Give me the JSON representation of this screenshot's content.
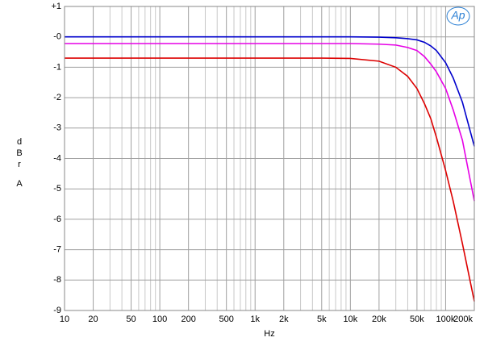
{
  "chart_data": {
    "type": "line",
    "x_label": "Hz",
    "y_label": [
      "d",
      "B",
      "r",
      "A"
    ],
    "logo": "Ap",
    "x": [
      10,
      20,
      50,
      100,
      200,
      500,
      1000,
      2000,
      5000,
      10000,
      20000,
      30000,
      40000,
      50000,
      60000,
      70000,
      80000,
      100000,
      120000,
      150000,
      200000
    ],
    "series": [
      {
        "color": "#0000cc",
        "values": [
          0,
          0,
          0,
          0,
          0,
          0,
          0,
          0,
          0,
          0,
          -0.01,
          -0.03,
          -0.06,
          -0.1,
          -0.18,
          -0.3,
          -0.45,
          -0.85,
          -1.35,
          -2.15,
          -3.6
        ]
      },
      {
        "color": "#e600e6",
        "values": [
          -0.22,
          -0.22,
          -0.22,
          -0.22,
          -0.22,
          -0.22,
          -0.22,
          -0.22,
          -0.22,
          -0.22,
          -0.24,
          -0.27,
          -0.35,
          -0.45,
          -0.65,
          -0.9,
          -1.15,
          -1.7,
          -2.4,
          -3.4,
          -5.4
        ]
      },
      {
        "color": "#dd0000",
        "values": [
          -0.7,
          -0.7,
          -0.7,
          -0.7,
          -0.7,
          -0.7,
          -0.7,
          -0.7,
          -0.7,
          -0.71,
          -0.8,
          -1.0,
          -1.3,
          -1.7,
          -2.2,
          -2.7,
          -3.3,
          -4.4,
          -5.4,
          -6.8,
          -8.7
        ]
      }
    ],
    "log_x": true,
    "xlim": [
      10,
      200000
    ],
    "ylim": [
      -9,
      1
    ],
    "xticks": [
      10,
      20,
      50,
      100,
      200,
      500,
      {
        "value": 1000,
        "label": "1k"
      },
      {
        "value": 2000,
        "label": "2k"
      },
      {
        "value": 5000,
        "label": "5k"
      },
      {
        "value": 10000,
        "label": "10k"
      },
      {
        "value": 20000,
        "label": "20k"
      },
      {
        "value": 50000,
        "label": "50k"
      },
      {
        "value": 100000,
        "label": "100k"
      },
      {
        "value": 200000,
        "label": "200k"
      }
    ],
    "x_minor_grid": [
      30,
      40,
      60,
      70,
      80,
      90,
      300,
      400,
      600,
      700,
      800,
      900,
      3000,
      4000,
      6000,
      7000,
      8000,
      9000,
      30000,
      40000,
      60000,
      70000,
      80000,
      90000
    ],
    "yticks": [
      {
        "value": 1,
        "label": "+1"
      },
      {
        "value": 0,
        "label": "-0"
      },
      -1,
      -2,
      -3,
      -4,
      -5,
      -6,
      -7,
      -8,
      -9
    ],
    "grid": true
  }
}
